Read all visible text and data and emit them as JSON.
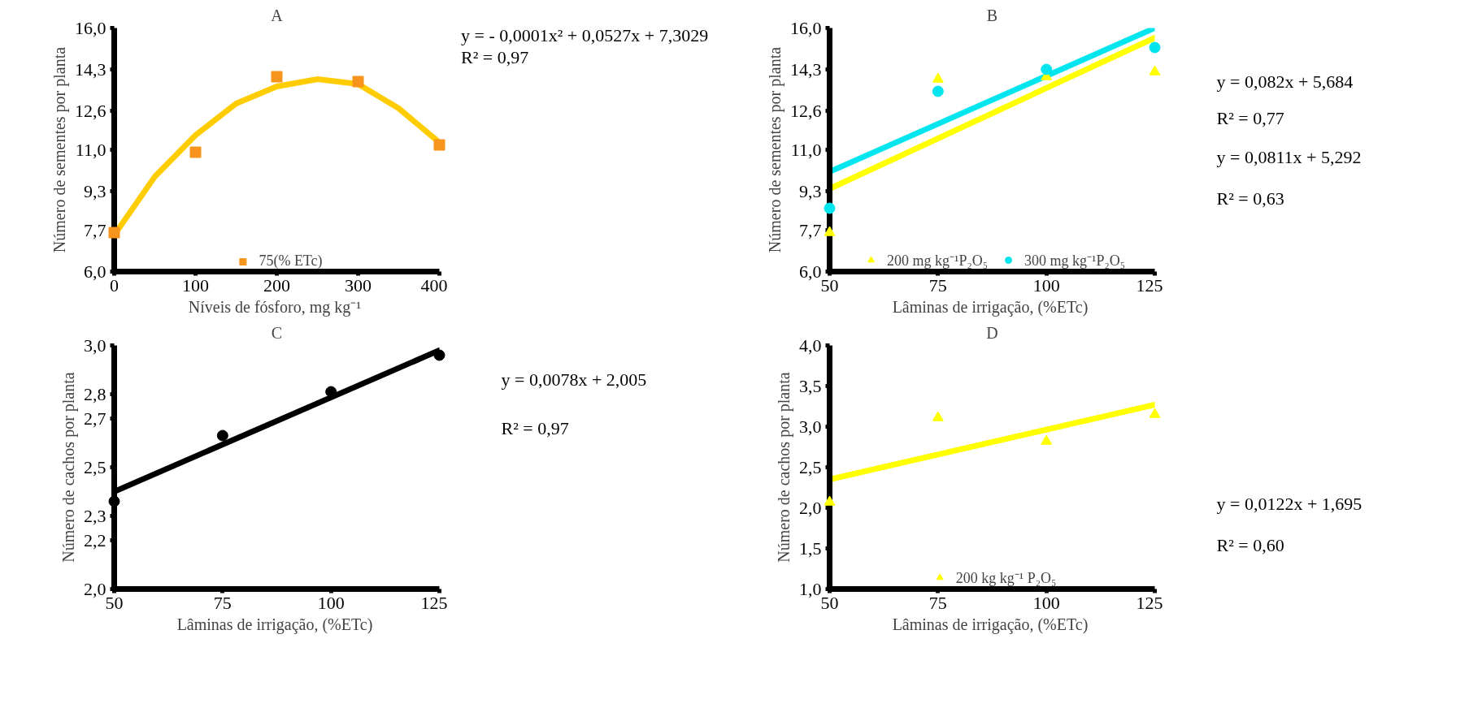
{
  "chart_data": [
    {
      "type": "scatter",
      "title": "A",
      "xlabel": "Níveis de fósforo, mg  kg⁻¹",
      "ylabel": "Número de sementes por planta",
      "xlim": [
        0,
        400
      ],
      "xticks": [
        0,
        100,
        200,
        300,
        400
      ],
      "ylim": [
        6,
        16
      ],
      "yticks": [
        {
          "value": 6,
          "label": "6,0"
        },
        {
          "value": 7.7,
          "label": "7,7"
        },
        {
          "value": 9.3,
          "label": "9,3"
        },
        {
          "value": 11,
          "label": "11,0"
        },
        {
          "value": 12.6,
          "label": "12,6"
        },
        {
          "value": 14.3,
          "label": "14,3"
        },
        {
          "value": 16,
          "label": "16,0"
        }
      ],
      "grid": false,
      "legend": "bottom",
      "annotations": [
        "y = - 0,0001x² + 0,0527x + 7,3029",
        "R² = 0,97"
      ],
      "series": [
        {
          "type": "line",
          "color": "#ffcc00",
          "line_style": "solid",
          "x": [
            0,
            50,
            100,
            150,
            200,
            250,
            300,
            350,
            400
          ],
          "values": [
            7.5,
            9.9,
            11.6,
            12.9,
            13.6,
            13.9,
            13.7,
            12.7,
            11.3
          ]
        },
        {
          "type": "scatter",
          "name": "75(% ETc)",
          "color": "#f7941d",
          "marker": "square",
          "x": [
            0,
            100,
            200,
            300,
            400
          ],
          "values": [
            7.6,
            10.9,
            14.0,
            13.8,
            11.2
          ]
        }
      ]
    },
    {
      "type": "scatter",
      "title": "B",
      "xlabel": "Lâminas de irrigação,  (%ETc)",
      "ylabel": "Número de sementes por planta",
      "xlim": [
        50,
        125
      ],
      "xticks": [
        50,
        75,
        100,
        125
      ],
      "ylim": [
        6,
        16
      ],
      "yticks": [
        {
          "value": 6,
          "label": "6,0"
        },
        {
          "value": 7.7,
          "label": "7,7"
        },
        {
          "value": 9.3,
          "label": "9,3"
        },
        {
          "value": 11,
          "label": "11,0"
        },
        {
          "value": 12.6,
          "label": "12,6"
        },
        {
          "value": 14.3,
          "label": "14,3"
        },
        {
          "value": 16,
          "label": "16,0"
        }
      ],
      "grid": false,
      "legend": "bottom",
      "annotations": [
        "y = 0,082x + 5,684",
        "R² = 0,77",
        "y = 0,0811x + 5,292",
        "R² = 0,63"
      ],
      "series": [
        {
          "type": "line",
          "color": "#ffff00",
          "line_style": "solid",
          "x": [
            50,
            125
          ],
          "values": [
            9.4,
            15.6
          ]
        },
        {
          "type": "line",
          "color": "#00e5ee",
          "line_style": "solid",
          "x": [
            50,
            125
          ],
          "values": [
            10.1,
            16.0
          ]
        },
        {
          "type": "scatter",
          "name": "200 mg kg⁻¹P₂O₅",
          "color": "#ffff00",
          "marker": "triangle",
          "x": [
            50,
            75,
            100,
            125
          ],
          "values": [
            7.6,
            13.9,
            14.0,
            14.2
          ]
        },
        {
          "type": "scatter",
          "name": "300 mg kg⁻¹P₂O₅",
          "color": "#00e5ee",
          "marker": "circle",
          "x": [
            50,
            75,
            100,
            125
          ],
          "values": [
            8.6,
            13.4,
            14.3,
            15.2
          ]
        }
      ]
    },
    {
      "type": "scatter",
      "title": "C",
      "xlabel": "Lâminas de irrigação,  (%ETc)",
      "ylabel": "Número de cachos por planta",
      "xlim": [
        50,
        125
      ],
      "xticks": [
        50,
        75,
        100,
        125
      ],
      "ylim": [
        2,
        3
      ],
      "yticks": [
        {
          "value": 2,
          "label": "2,0"
        },
        {
          "value": 2.2,
          "label": "2,2"
        },
        {
          "value": 2.3,
          "label": "2,3"
        },
        {
          "value": 2.5,
          "label": "2,5"
        },
        {
          "value": 2.7,
          "label": "2,7"
        },
        {
          "value": 2.8,
          "label": "2,8"
        },
        {
          "value": 3,
          "label": "3,0"
        }
      ],
      "grid": false,
      "annotations": [
        "y = 0,0078x + 2,005",
        "R² = 0,97"
      ],
      "series": [
        {
          "type": "line",
          "color": "#000000",
          "line_style": "solid",
          "x": [
            50,
            125
          ],
          "values": [
            2.4,
            2.98
          ]
        },
        {
          "type": "scatter",
          "color": "#000000",
          "marker": "circle",
          "x": [
            50,
            75,
            100,
            125
          ],
          "values": [
            2.36,
            2.63,
            2.81,
            2.96
          ]
        }
      ]
    },
    {
      "type": "scatter",
      "title": "D",
      "xlabel": "Lâminas de irrigação,  (%ETc)",
      "ylabel": "Número de cachos por planta",
      "xlim": [
        50,
        125
      ],
      "xticks": [
        50,
        75,
        100,
        125
      ],
      "ylim": [
        1,
        4
      ],
      "yticks": [
        {
          "value": 1,
          "label": "1,0"
        },
        {
          "value": 1.5,
          "label": "1,5"
        },
        {
          "value": 2,
          "label": "2,0"
        },
        {
          "value": 2.5,
          "label": "2,5"
        },
        {
          "value": 3,
          "label": "3,0"
        },
        {
          "value": 3.5,
          "label": "3,5"
        },
        {
          "value": 4,
          "label": "4,0"
        }
      ],
      "grid": false,
      "legend": "bottom",
      "annotations": [
        "y = 0,0122x + 1,695",
        "R² = 0,60"
      ],
      "series": [
        {
          "type": "line",
          "color": "#ffff00",
          "line_style": "solid",
          "x": [
            50,
            125
          ],
          "values": [
            2.35,
            3.27
          ]
        },
        {
          "type": "scatter",
          "name": "200 kg kg⁻¹ P₂O₅",
          "color": "#ffff00",
          "marker": "triangle",
          "x": [
            50,
            75,
            100,
            125
          ],
          "values": [
            2.07,
            3.11,
            2.82,
            3.15
          ]
        }
      ]
    }
  ]
}
